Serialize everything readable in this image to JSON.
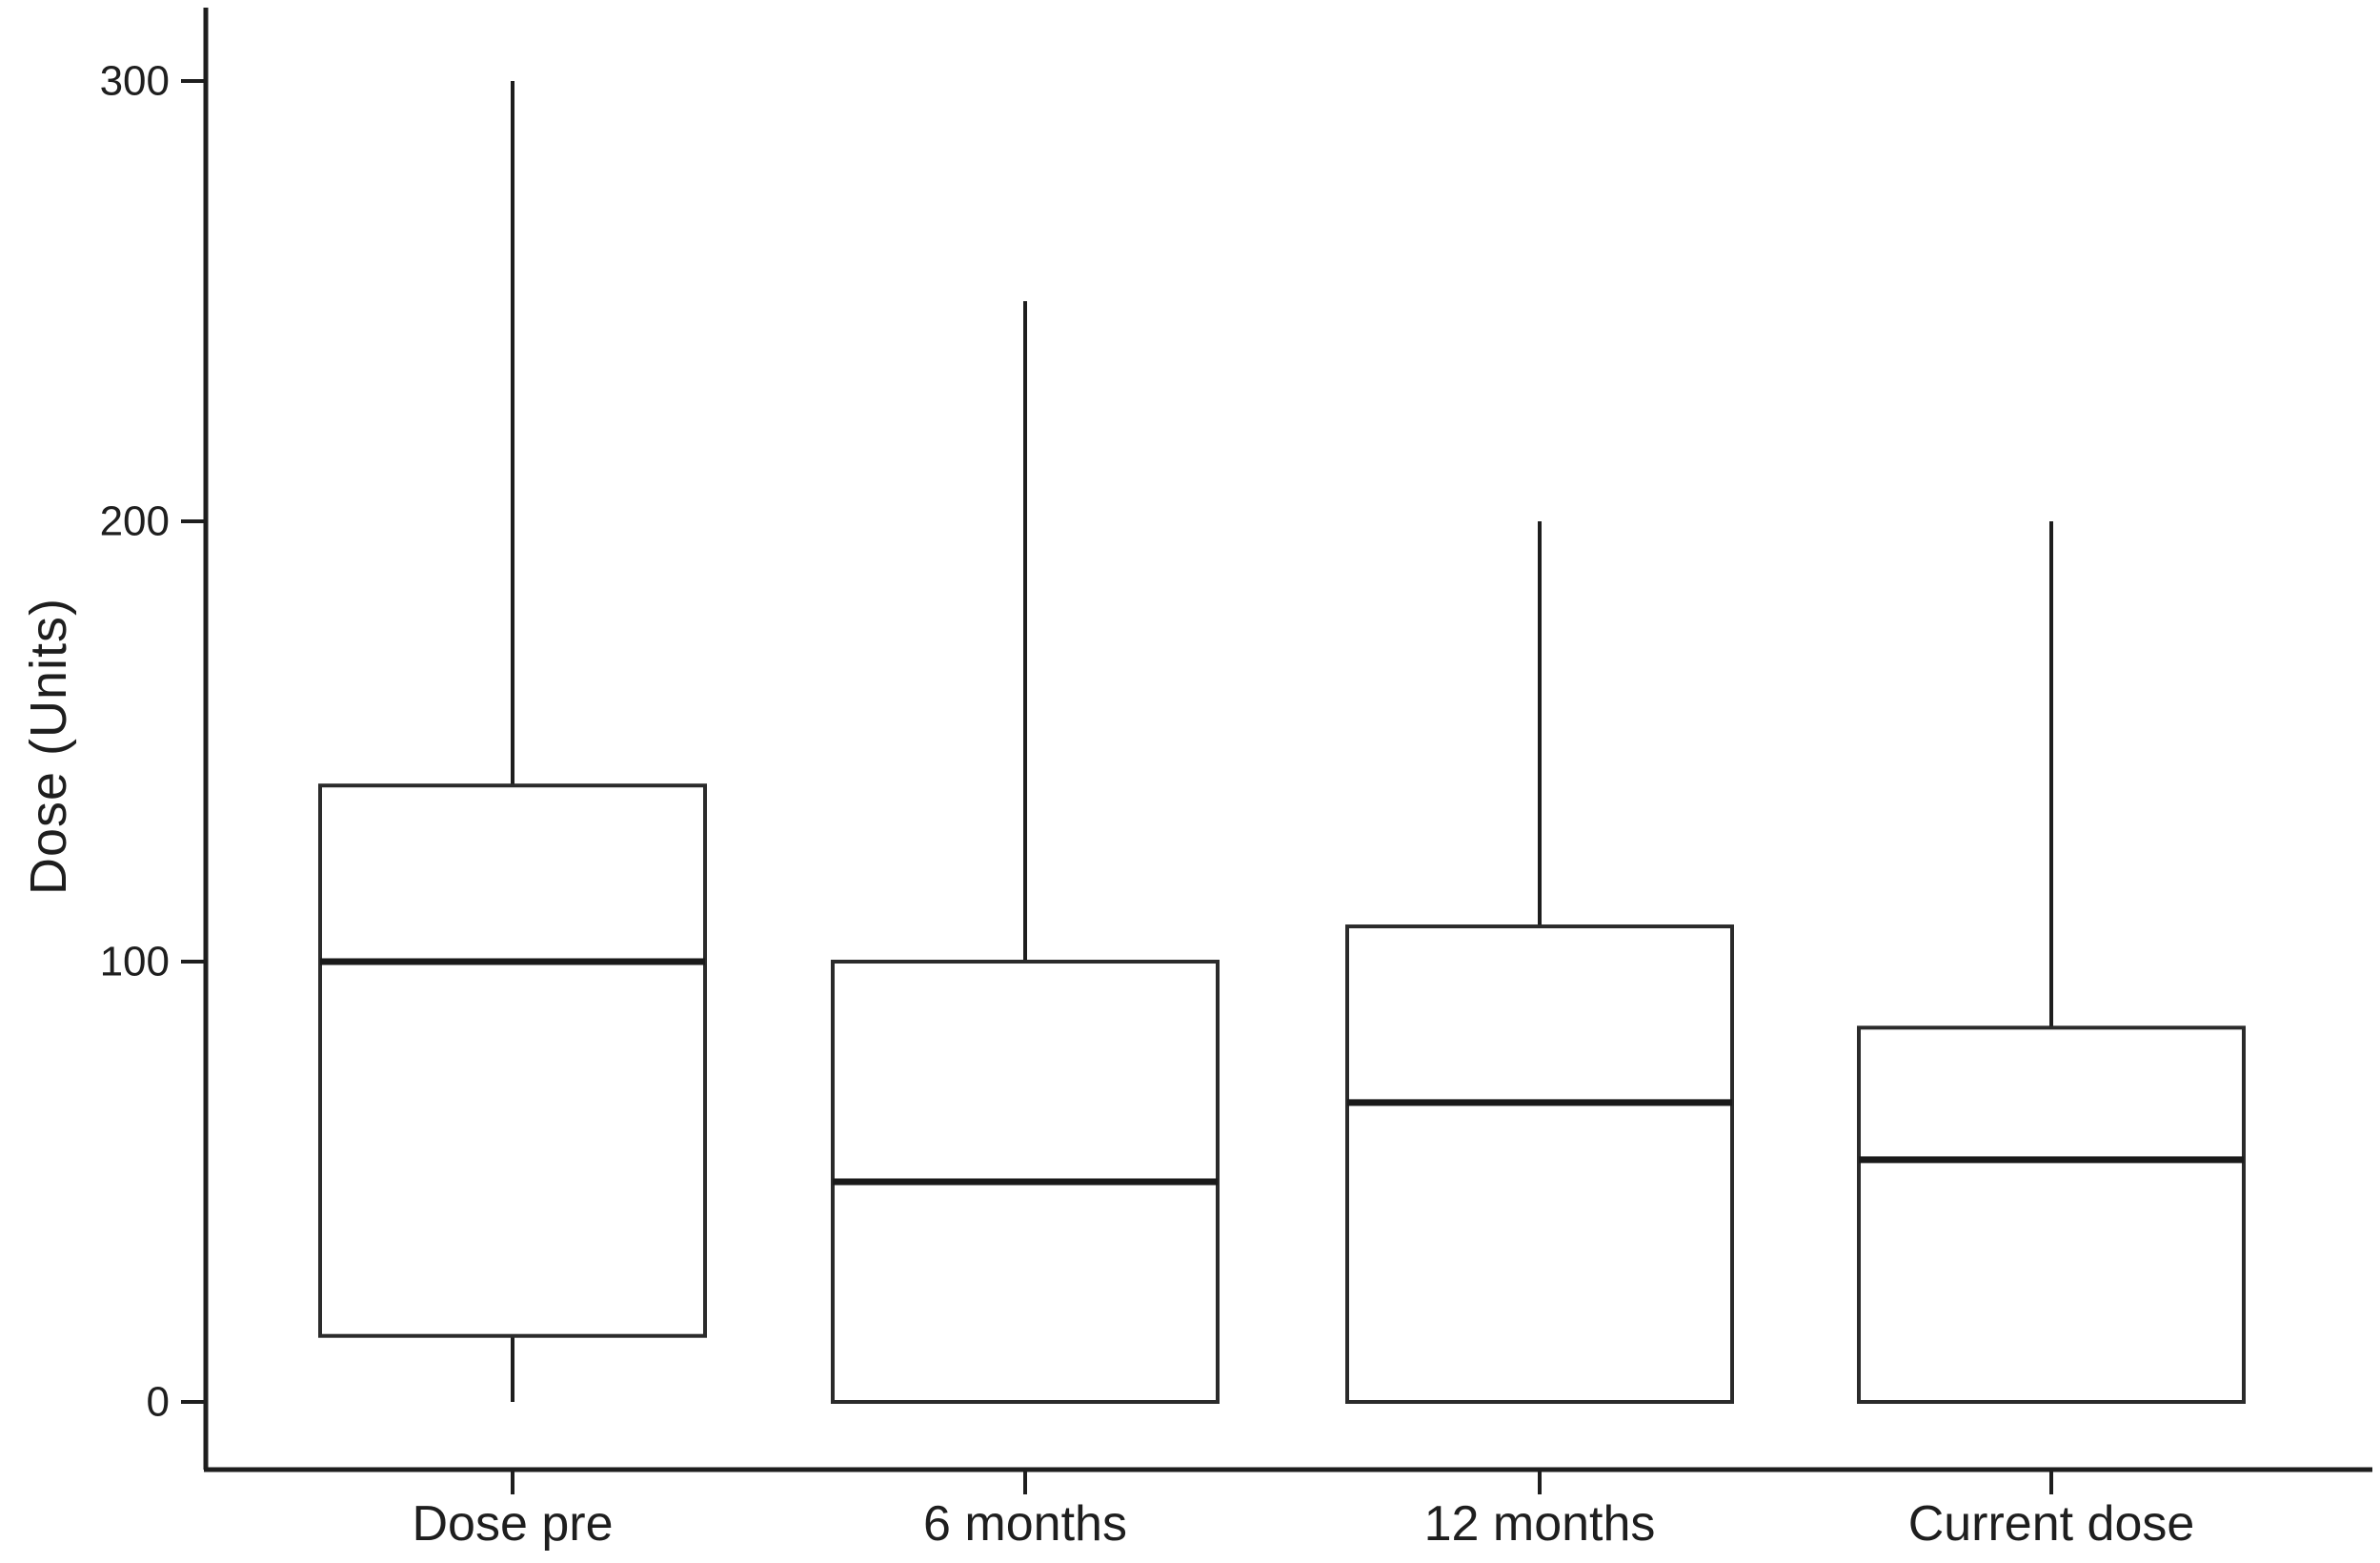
{
  "chart_data": {
    "type": "boxplot",
    "title": "",
    "xlabel": "",
    "ylabel": "Dose (Units)",
    "yticks": [
      0,
      100,
      200,
      300
    ],
    "ylim": [
      -15,
      315
    ],
    "grid": false,
    "legend": "none",
    "whisker_caps": false,
    "categories": [
      "Dose pre",
      "6 months",
      "12 months",
      "Current dose"
    ],
    "series": [
      {
        "category": "Dose pre",
        "min": 0,
        "q1": 15,
        "median": 100,
        "q3": 140,
        "max": 300
      },
      {
        "category": "6 months",
        "min": 0,
        "q1": 0,
        "median": 50,
        "q3": 100,
        "max": 250
      },
      {
        "category": "12 months",
        "min": 0,
        "q1": 0,
        "median": 68,
        "q3": 108,
        "max": 200
      },
      {
        "category": "Current dose",
        "min": 0,
        "q1": 0,
        "median": 55,
        "q3": 85,
        "max": 200
      }
    ],
    "colors": {
      "axis": "#1e1e1e",
      "box_stroke": "#2b2b2b",
      "median_stroke": "#1a1a1a",
      "box_fill": "#ffffff",
      "text": "#1e1e1e",
      "background": "#ffffff"
    }
  }
}
